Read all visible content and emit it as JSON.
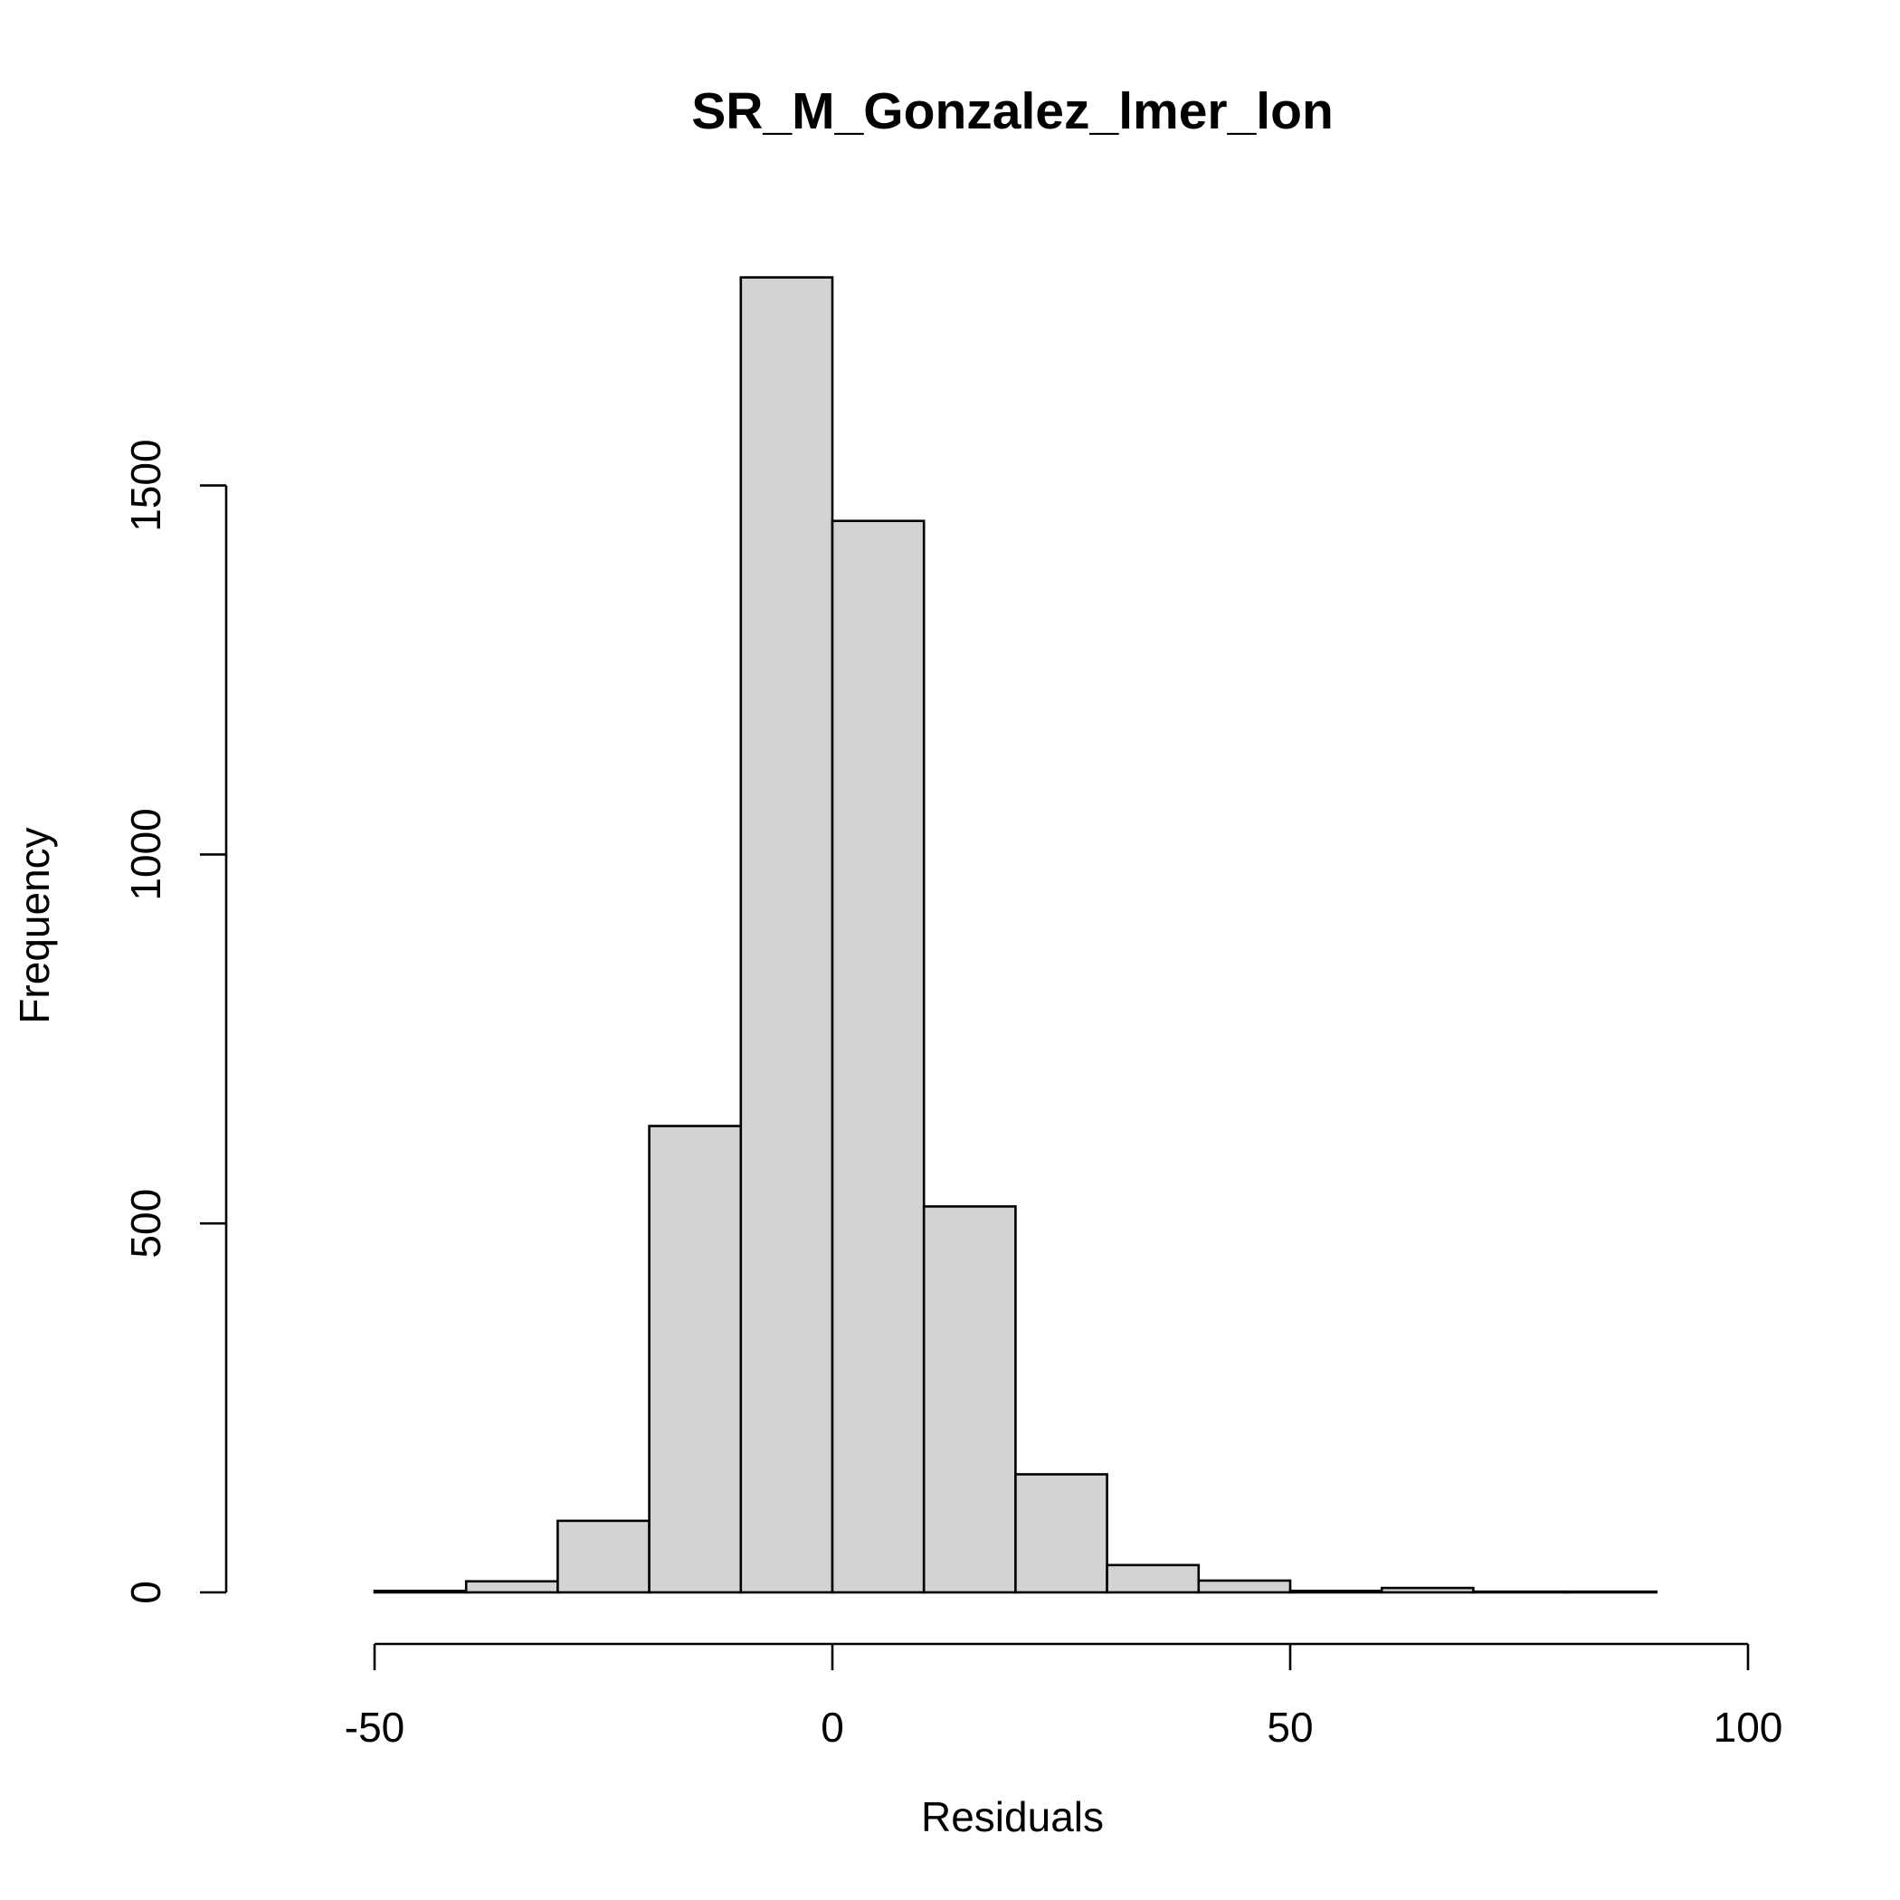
{
  "chart_data": {
    "type": "histogram",
    "title": "SR_M_Gonzalez_lmer_lon",
    "xlabel": "Residuals",
    "ylabel": "Frequency",
    "bin_width": 10,
    "bins": [
      {
        "x0": -60,
        "x1": -50,
        "count": 0
      },
      {
        "x0": -50,
        "x1": -40,
        "count": 2
      },
      {
        "x0": -40,
        "x1": -30,
        "count": 15
      },
      {
        "x0": -30,
        "x1": -20,
        "count": 97
      },
      {
        "x0": -20,
        "x1": -10,
        "count": 632
      },
      {
        "x0": -10,
        "x1": 0,
        "count": 1782
      },
      {
        "x0": 0,
        "x1": 10,
        "count": 1452
      },
      {
        "x0": 10,
        "x1": 20,
        "count": 523
      },
      {
        "x0": 20,
        "x1": 30,
        "count": 160
      },
      {
        "x0": 30,
        "x1": 40,
        "count": 37
      },
      {
        "x0": 40,
        "x1": 50,
        "count": 16
      },
      {
        "x0": 50,
        "x1": 60,
        "count": 2
      },
      {
        "x0": 60,
        "x1": 70,
        "count": 6
      },
      {
        "x0": 70,
        "x1": 80,
        "count": 1
      },
      {
        "x0": 80,
        "x1": 90,
        "count": 1
      },
      {
        "x0": 90,
        "x1": 100,
        "count": 0
      }
    ],
    "xlim": [
      -60,
      100
    ],
    "ylim": [
      0,
      1782
    ],
    "x_ticks": [
      -50,
      0,
      50,
      100
    ],
    "x_tick_labels": [
      "-50",
      "0",
      "50",
      "100"
    ],
    "y_ticks": [
      0,
      500,
      1000,
      1500
    ],
    "y_tick_labels": [
      "0",
      "500",
      "1000",
      "1500"
    ],
    "bar_fill": "#d3d3d3",
    "grid": false,
    "legend": "none"
  }
}
